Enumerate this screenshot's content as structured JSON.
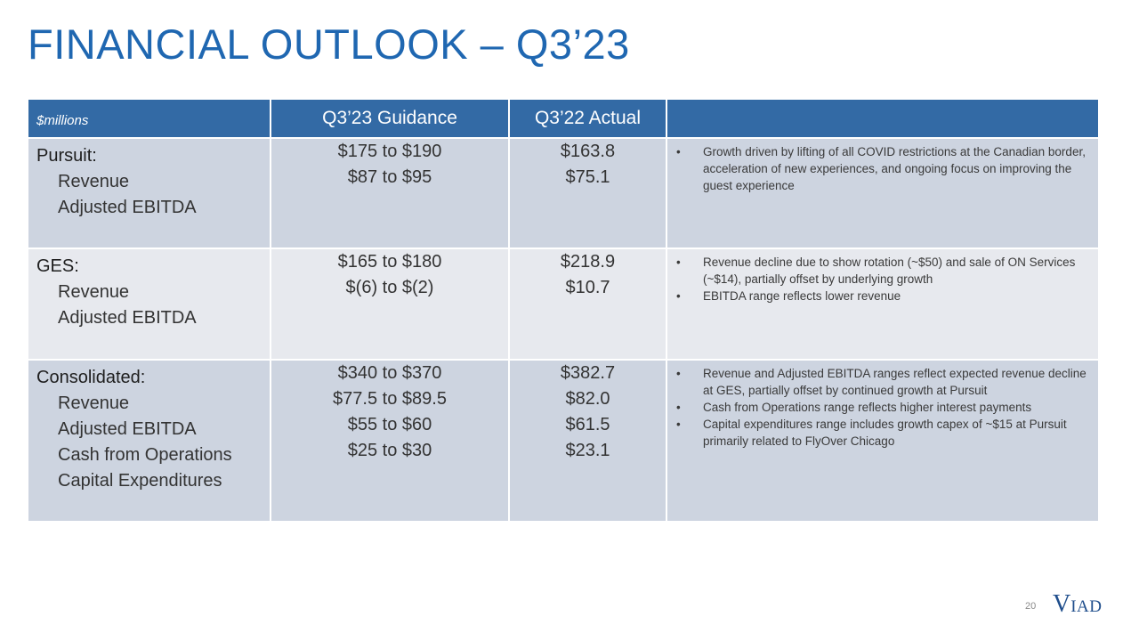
{
  "title": "FINANCIAL OUTLOOK – Q3’23",
  "table": {
    "headers": {
      "units": "$millions",
      "guidance": "Q3’23 Guidance",
      "actual": "Q3’22 Actual",
      "notes": ""
    },
    "sections": [
      {
        "name": "Pursuit:",
        "metrics": [
          "Revenue",
          "Adjusted EBITDA"
        ],
        "guidance": [
          "$175 to $190",
          "$87 to $95"
        ],
        "actual": [
          "$163.8",
          "$75.1"
        ],
        "notes": [
          "Growth driven by lifting of all COVID restrictions at the Canadian border, acceleration of new experiences, and ongoing focus on improving the guest experience"
        ]
      },
      {
        "name": "GES:",
        "metrics": [
          "Revenue",
          "Adjusted EBITDA"
        ],
        "guidance": [
          "$165 to $180",
          "$(6) to $(2)"
        ],
        "actual": [
          "$218.9",
          "$10.7"
        ],
        "notes": [
          "Revenue decline due to show rotation (~$50) and sale of ON Services (~$14), partially offset by underlying growth",
          "EBITDA range reflects lower revenue"
        ]
      },
      {
        "name": "Consolidated:",
        "metrics": [
          "Revenue",
          "Adjusted EBITDA",
          "Cash from Operations",
          "Capital Expenditures"
        ],
        "guidance": [
          "$340 to $370",
          "$77.5 to $89.5",
          "$55 to $60",
          "$25 to $30"
        ],
        "actual": [
          "$382.7",
          "$82.0",
          "$61.5",
          "$23.1"
        ],
        "notes": [
          "Revenue and Adjusted EBITDA ranges reflect expected revenue decline at GES, partially offset by continued growth at Pursuit",
          "Cash from Operations range reflects higher interest payments",
          "Capital expenditures range includes growth capex of ~$15 at Pursuit primarily related to FlyOver Chicago"
        ]
      }
    ]
  },
  "footer": {
    "page_number": "20",
    "logo_big": "V",
    "logo_small": "IAD"
  }
}
